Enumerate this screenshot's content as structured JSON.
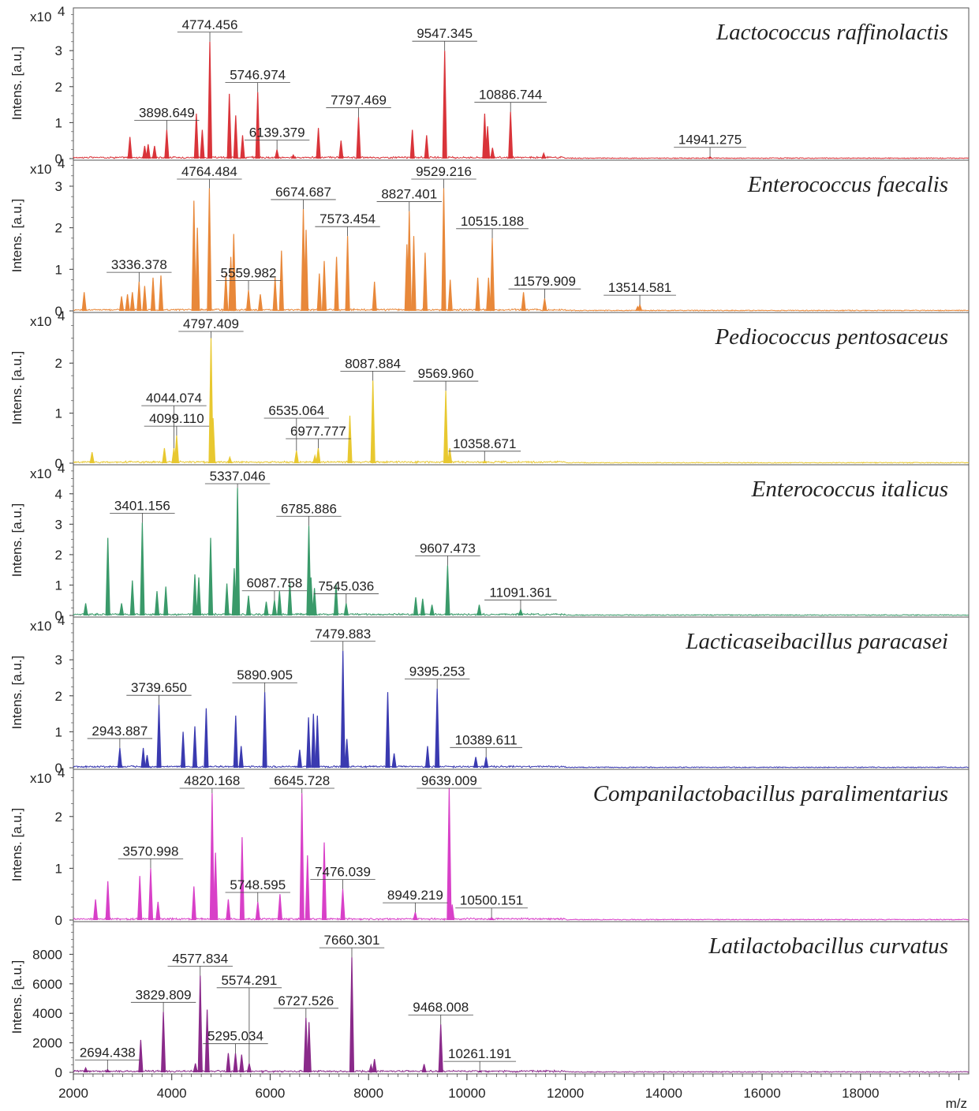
{
  "chart_data": {
    "type": "line",
    "x_axis": {
      "label": "m/z",
      "range": [
        2000,
        20200
      ],
      "ticks": [
        2000,
        4000,
        6000,
        8000,
        10000,
        12000,
        14000,
        16000,
        18000
      ],
      "tick_labels": [
        "2000",
        "4000",
        "6000",
        "8000",
        "10000",
        "12000",
        "14000",
        "16000",
        "18000"
      ]
    },
    "panels": [
      {
        "name": "Lactococcus raffinolactis",
        "color": "#d9343a",
        "ylabel": "Intens. [a.u.]",
        "multiplier": "x10",
        "exponent": "4",
        "ylim": [
          0,
          4.1
        ],
        "yticks": [
          0,
          1,
          2,
          3
        ],
        "ytick_labels": [
          "0",
          "1",
          "2",
          "3"
        ],
        "peaks": [
          {
            "mz": 4774.456,
            "label": "4774.456",
            "h": 3.25
          },
          {
            "mz": 9547.345,
            "label": "9547.345",
            "h": 3.0
          },
          {
            "mz": 5746.974,
            "label": "5746.974",
            "h": 1.85
          },
          {
            "mz": 3898.649,
            "label": "3898.649",
            "h": 0.8
          },
          {
            "mz": 7797.469,
            "label": "7797.469",
            "h": 1.15
          },
          {
            "mz": 10886.744,
            "label": "10886.744",
            "h": 1.3
          },
          {
            "mz": 6139.379,
            "label": "6139.379",
            "h": 0.25
          },
          {
            "mz": 14941.275,
            "label": "14941.275",
            "h": 0.05
          }
        ],
        "extra_peaks": [
          [
            3150,
            0.6
          ],
          [
            3450,
            0.35
          ],
          [
            3520,
            0.4
          ],
          [
            3650,
            0.35
          ],
          [
            4500,
            1.25
          ],
          [
            4620,
            0.8
          ],
          [
            5170,
            1.8
          ],
          [
            5300,
            1.2
          ],
          [
            5440,
            0.65
          ],
          [
            6470,
            0.1
          ],
          [
            6980,
            0.85
          ],
          [
            7440,
            0.5
          ],
          [
            8890,
            0.8
          ],
          [
            9180,
            0.65
          ],
          [
            10360,
            1.25
          ],
          [
            10420,
            0.9
          ],
          [
            10520,
            0.3
          ],
          [
            11560,
            0.15
          ]
        ]
      },
      {
        "name": "Enterococcus faecalis",
        "color": "#e8883a",
        "ylabel": "Intens. [a.u.]",
        "multiplier": "x10",
        "exponent": "4",
        "ylim": [
          0,
          3.55
        ],
        "yticks": [
          0,
          1,
          2,
          3
        ],
        "ytick_labels": [
          "0",
          "1",
          "2",
          "3"
        ],
        "peaks": [
          {
            "mz": 4764.484,
            "label": "4764.484",
            "h": 2.95
          },
          {
            "mz": 9529.216,
            "label": "9529.216",
            "h": 2.95
          },
          {
            "mz": 6674.687,
            "label": "6674.687",
            "h": 2.45
          },
          {
            "mz": 8827.401,
            "label": "8827.401",
            "h": 2.4
          },
          {
            "mz": 5559.982,
            "label": "5559.982",
            "h": 0.5
          },
          {
            "mz": 7573.454,
            "label": "7573.454",
            "h": 1.8
          },
          {
            "mz": 3336.378,
            "label": "3336.378",
            "h": 0.7
          },
          {
            "mz": 10515.188,
            "label": "10515.188",
            "h": 1.75
          },
          {
            "mz": 11579.909,
            "label": "11579.909",
            "h": 0.3
          },
          {
            "mz": 13514.581,
            "label": "13514.581",
            "h": 0.15
          }
        ],
        "extra_peaks": [
          [
            2220,
            0.45
          ],
          [
            2980,
            0.35
          ],
          [
            3100,
            0.4
          ],
          [
            3200,
            0.45
          ],
          [
            3450,
            0.6
          ],
          [
            3620,
            0.8
          ],
          [
            3780,
            0.85
          ],
          [
            4450,
            2.65
          ],
          [
            4520,
            2.0
          ],
          [
            5100,
            0.9
          ],
          [
            5200,
            1.3
          ],
          [
            5260,
            1.85
          ],
          [
            5800,
            0.4
          ],
          [
            6100,
            0.8
          ],
          [
            6230,
            1.45
          ],
          [
            6730,
            1.95
          ],
          [
            7000,
            0.9
          ],
          [
            7100,
            1.2
          ],
          [
            7350,
            1.3
          ],
          [
            8120,
            0.7
          ],
          [
            8780,
            1.6
          ],
          [
            8920,
            1.8
          ],
          [
            9150,
            1.4
          ],
          [
            9660,
            0.75
          ],
          [
            10220,
            0.8
          ],
          [
            10440,
            0.8
          ],
          [
            11150,
            0.45
          ],
          [
            13470,
            0.1
          ]
        ]
      },
      {
        "name": "Pediococcus pentosaceus",
        "color": "#e8c830",
        "ylabel": "Intens. [a.u.]",
        "multiplier": "x10",
        "exponent": "4",
        "ylim": [
          0,
          2.95
        ],
        "yticks": [
          0,
          1,
          2
        ],
        "ytick_labels": [
          "0",
          "1",
          "2"
        ],
        "peaks": [
          {
            "mz": 4797.409,
            "label": "4797.409",
            "h": 2.5
          },
          {
            "mz": 8087.884,
            "label": "8087.884",
            "h": 1.65
          },
          {
            "mz": 9569.96,
            "label": "9569.960",
            "h": 1.45
          },
          {
            "mz": 4099.11,
            "label": "4099.110",
            "h": 0.55
          },
          {
            "mz": 4044.074,
            "label": "4044.074",
            "h": 0.3
          },
          {
            "mz": 6977.777,
            "label": "6977.777",
            "h": 0.3
          },
          {
            "mz": 6535.064,
            "label": "6535.064",
            "h": 0.25
          },
          {
            "mz": 10358.671,
            "label": "10358.671",
            "h": 0.05
          }
        ],
        "extra_peaks": [
          [
            2380,
            0.22
          ],
          [
            3850,
            0.3
          ],
          [
            4840,
            0.9
          ],
          [
            5180,
            0.12
          ],
          [
            6910,
            0.15
          ],
          [
            7620,
            0.95
          ],
          [
            9650,
            0.3
          ]
        ]
      },
      {
        "name": "Enterococcus italicus",
        "color": "#3a9a6a",
        "ylabel": "Intens. [a.u.]",
        "multiplier": "x10",
        "exponent": "4",
        "ylim": [
          0,
          4.85
        ],
        "yticks": [
          0,
          1,
          2,
          3,
          4
        ],
        "ytick_labels": [
          "0",
          "1",
          "2",
          "3",
          "4"
        ],
        "peaks": [
          {
            "mz": 5337.046,
            "label": "5337.046",
            "h": 4.2
          },
          {
            "mz": 6785.886,
            "label": "6785.886",
            "h": 2.95
          },
          {
            "mz": 3401.156,
            "label": "3401.156",
            "h": 3.05
          },
          {
            "mz": 6087.758,
            "label": "6087.758",
            "h": 0.5
          },
          {
            "mz": 7545.036,
            "label": "7545.036",
            "h": 0.4
          },
          {
            "mz": 9607.473,
            "label": "9607.473",
            "h": 1.65
          },
          {
            "mz": 11091.361,
            "label": "11091.361",
            "h": 0.2
          }
        ],
        "extra_peaks": [
          [
            2250,
            0.4
          ],
          [
            2700,
            2.55
          ],
          [
            2980,
            0.4
          ],
          [
            3200,
            1.15
          ],
          [
            3700,
            0.8
          ],
          [
            3880,
            0.95
          ],
          [
            4470,
            1.35
          ],
          [
            4550,
            1.25
          ],
          [
            4790,
            2.55
          ],
          [
            5120,
            1.05
          ],
          [
            5270,
            1.55
          ],
          [
            5560,
            0.65
          ],
          [
            5920,
            0.45
          ],
          [
            6190,
            0.8
          ],
          [
            6400,
            1.1
          ],
          [
            6830,
            1.25
          ],
          [
            6900,
            0.9
          ],
          [
            7340,
            1.05
          ],
          [
            8960,
            0.6
          ],
          [
            9100,
            0.55
          ],
          [
            9290,
            0.35
          ],
          [
            10250,
            0.35
          ]
        ]
      },
      {
        "name": "Lacticaseibacillus paracasei",
        "color": "#3a3ab0",
        "ylabel": "Intens. [a.u.]",
        "multiplier": "x10",
        "exponent": "4",
        "ylim": [
          0,
          4.1
        ],
        "yticks": [
          0,
          1,
          2,
          3
        ],
        "ytick_labels": [
          "0",
          "1",
          "2",
          "3"
        ],
        "peaks": [
          {
            "mz": 7479.883,
            "label": "7479.883",
            "h": 3.25
          },
          {
            "mz": 9395.253,
            "label": "9395.253",
            "h": 2.2
          },
          {
            "mz": 5890.905,
            "label": "5890.905",
            "h": 2.1
          },
          {
            "mz": 3739.65,
            "label": "3739.650",
            "h": 1.75
          },
          {
            "mz": 2943.887,
            "label": "2943.887",
            "h": 0.55
          },
          {
            "mz": 10389.611,
            "label": "10389.611",
            "h": 0.3
          }
        ],
        "extra_peaks": [
          [
            3420,
            0.55
          ],
          [
            3500,
            0.35
          ],
          [
            4230,
            1.0
          ],
          [
            4470,
            1.15
          ],
          [
            4700,
            1.65
          ],
          [
            5300,
            1.45
          ],
          [
            5410,
            0.6
          ],
          [
            6600,
            0.5
          ],
          [
            6780,
            1.4
          ],
          [
            6880,
            1.5
          ],
          [
            6960,
            1.45
          ],
          [
            7560,
            0.8
          ],
          [
            8390,
            2.1
          ],
          [
            8520,
            0.4
          ],
          [
            9200,
            0.6
          ],
          [
            10180,
            0.3
          ]
        ]
      },
      {
        "name": "Companilactobacillus paralimentarius",
        "color": "#d840c8",
        "ylabel": "Intens. [a.u.]",
        "multiplier": "x10",
        "exponent": "4",
        "ylim": [
          0,
          2.85
        ],
        "yticks": [
          0,
          1,
          2
        ],
        "ytick_labels": [
          "0",
          "1",
          "2"
        ],
        "peaks": [
          {
            "mz": 4820.168,
            "label": "4820.168",
            "h": 2.45
          },
          {
            "mz": 9639.009,
            "label": "9639.009",
            "h": 2.55
          },
          {
            "mz": 6645.728,
            "label": "6645.728",
            "h": 2.45
          },
          {
            "mz": 5748.595,
            "label": "5748.595",
            "h": 0.35
          },
          {
            "mz": 7476.039,
            "label": "7476.039",
            "h": 0.6
          },
          {
            "mz": 3570.998,
            "label": "3570.998",
            "h": 1.0
          },
          {
            "mz": 8949.219,
            "label": "8949.219",
            "h": 0.15
          },
          {
            "mz": 10500.151,
            "label": "10500.151",
            "h": 0.05
          }
        ],
        "extra_peaks": [
          [
            2450,
            0.4
          ],
          [
            2700,
            0.75
          ],
          [
            3350,
            0.85
          ],
          [
            3720,
            0.35
          ],
          [
            4450,
            0.65
          ],
          [
            4890,
            1.3
          ],
          [
            5150,
            0.4
          ],
          [
            5430,
            1.6
          ],
          [
            6200,
            0.5
          ],
          [
            6760,
            1.25
          ],
          [
            7100,
            1.5
          ],
          [
            9700,
            0.3
          ]
        ]
      },
      {
        "name": "Latilactobacillus curvatus",
        "color": "#8a2a8a",
        "ylabel": "Intens. [a.u.]",
        "multiplier": "",
        "exponent": "",
        "ylim": [
          0,
          10000
        ],
        "yticks": [
          0,
          2000,
          4000,
          6000,
          8000
        ],
        "ytick_labels": [
          "0",
          "2000",
          "4000",
          "6000",
          "8000"
        ],
        "peaks": [
          {
            "mz": 7660.301,
            "label": "7660.301",
            "h": 7800
          },
          {
            "mz": 4577.834,
            "label": "4577.834",
            "h": 6550
          },
          {
            "mz": 3829.809,
            "label": "3829.809",
            "h": 4100
          },
          {
            "mz": 5295.034,
            "label": "5295.034",
            "h": 1300
          },
          {
            "mz": 6727.526,
            "label": "6727.526",
            "h": 3700
          },
          {
            "mz": 9468.008,
            "label": "9468.008",
            "h": 3250
          },
          {
            "mz": 2694.438,
            "label": "2694.438",
            "h": 200
          },
          {
            "mz": 5574.291,
            "label": "5574.291",
            "h": 600
          },
          {
            "mz": 10261.191,
            "label": "10261.191",
            "h": 100
          }
        ],
        "extra_peaks": [
          [
            2250,
            300
          ],
          [
            3370,
            2200
          ],
          [
            4480,
            600
          ],
          [
            4720,
            4250
          ],
          [
            5150,
            1300
          ],
          [
            5420,
            1200
          ],
          [
            6790,
            3400
          ],
          [
            8050,
            500
          ],
          [
            8120,
            900
          ],
          [
            9130,
            550
          ]
        ]
      }
    ]
  }
}
